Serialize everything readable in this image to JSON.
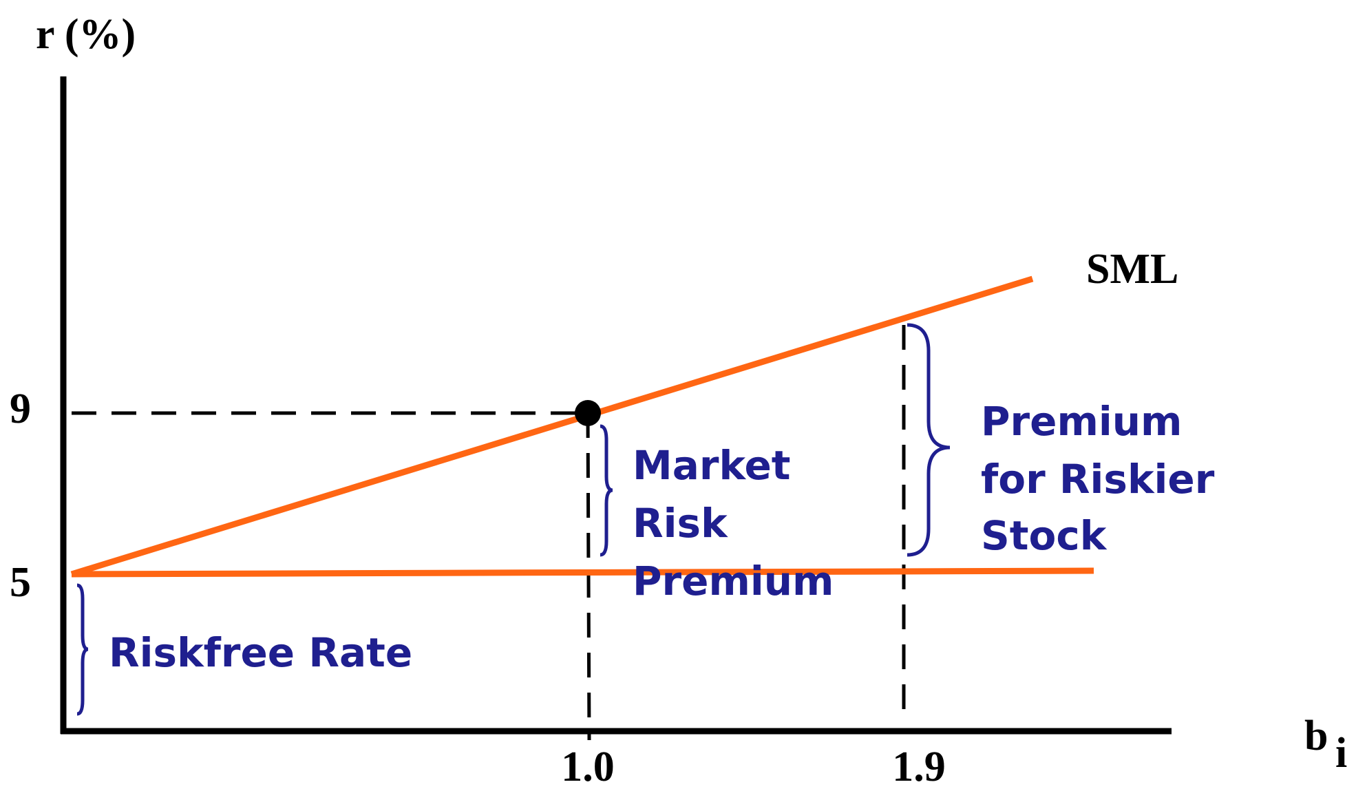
{
  "axes": {
    "y_label": "r (%)",
    "x_label": "b",
    "x_label_subscript": "i"
  },
  "y_ticks": [
    "9",
    "5"
  ],
  "x_ticks": [
    "1.0",
    "1.9"
  ],
  "line_label": "SML",
  "annotations": {
    "market_risk_premium": [
      "Market",
      "Risk",
      "Premium"
    ],
    "premium_for_riskier_stock": [
      "Premium",
      "for Riskier",
      "Stock"
    ],
    "riskfree_rate": "Riskfree Rate"
  }
}
